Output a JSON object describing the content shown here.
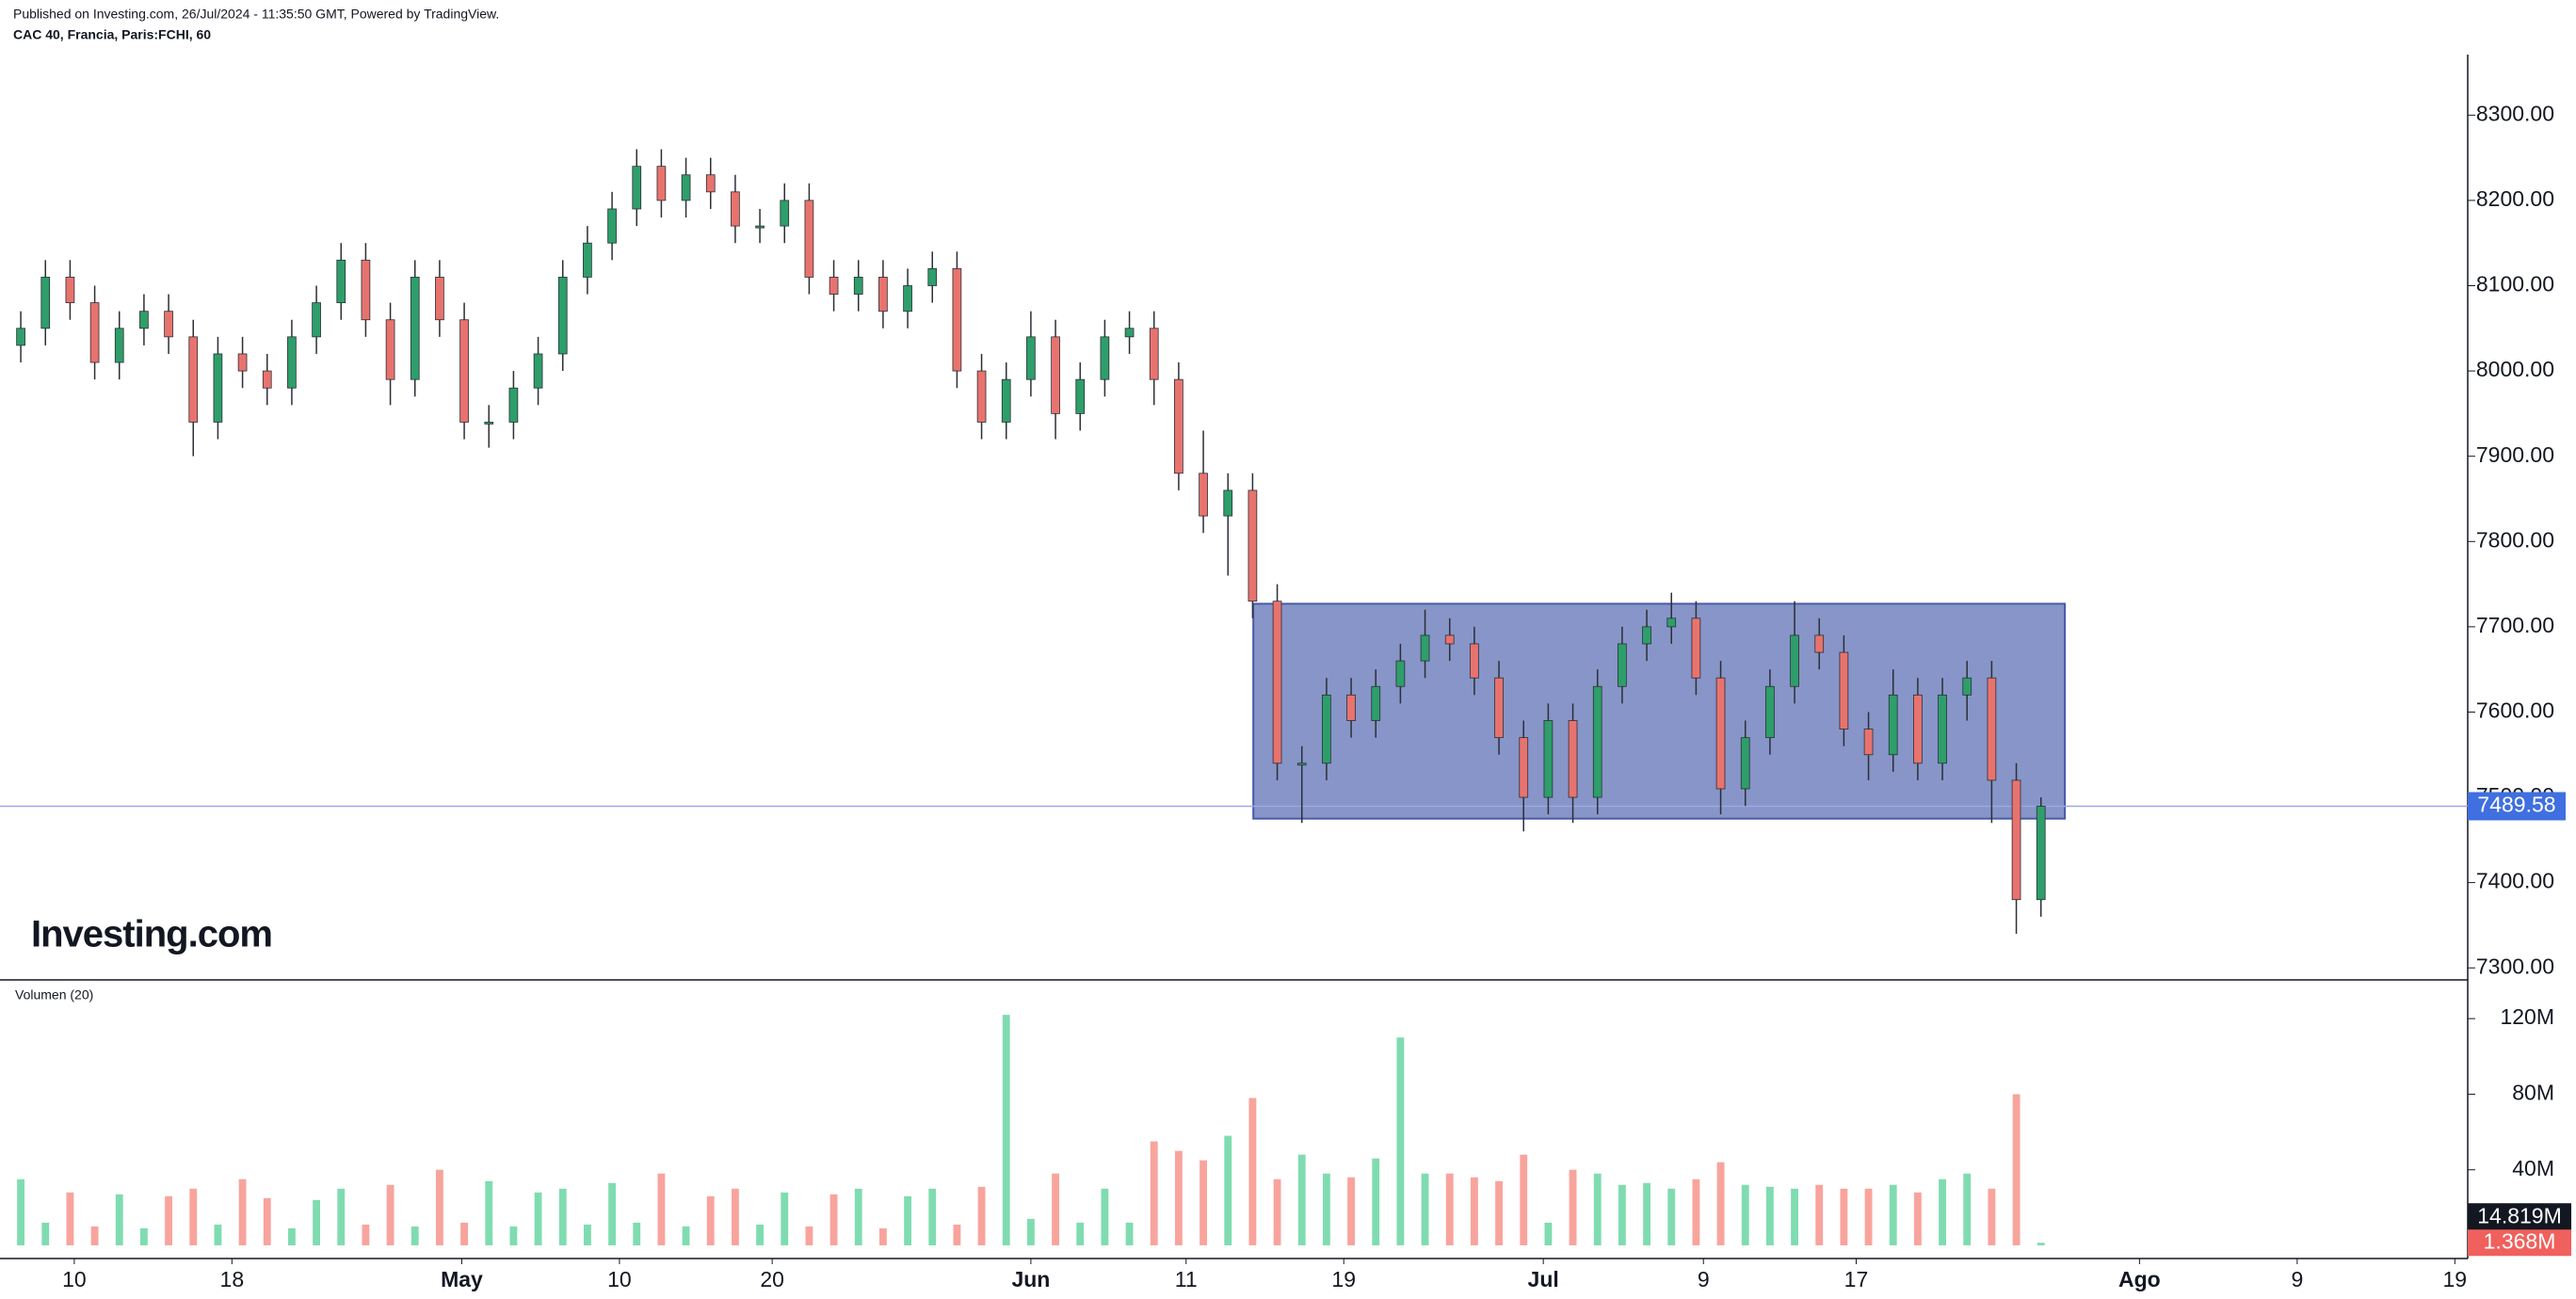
{
  "header": {
    "published": "Published on Investing.com, 26/Jul/2024 - 11:35:50 GMT, Powered by TradingView.",
    "symbol": "CAC 40, Francia, Paris:FCHI, 60"
  },
  "logo": "Investing.com",
  "chart_data": {
    "type": "candlestick",
    "up_color": "#2e9e6a",
    "down_color": "#e8736e",
    "open": [
      8030,
      8050,
      8110,
      8080,
      8010,
      8050,
      8070,
      8040,
      7940,
      8020,
      8000,
      7980,
      8040,
      8080,
      8130,
      8060,
      7990,
      8110,
      8060,
      7940,
      7940,
      7980,
      8020,
      8110,
      8150,
      8190,
      8240,
      8200,
      8230,
      8210,
      8170,
      8170,
      8200,
      8110,
      8090,
      8110,
      8070,
      8100,
      8120,
      8000,
      7940,
      7990,
      8040,
      7950,
      7990,
      8040,
      8050,
      7990,
      7880,
      7830,
      7860,
      7730,
      7540,
      7540,
      7620,
      7590,
      7630,
      7660,
      7690,
      7680,
      7640,
      7570,
      7500,
      7590,
      7500,
      7630,
      7680,
      7700,
      7710,
      7640,
      7510,
      7570,
      7630,
      7690,
      7670,
      7580,
      7550,
      7620,
      7540,
      7620,
      7640,
      7520,
      7380
    ],
    "high": [
      8070,
      8130,
      8130,
      8100,
      8070,
      8090,
      8090,
      8060,
      8040,
      8040,
      8020,
      8060,
      8100,
      8150,
      8150,
      8080,
      8130,
      8130,
      8080,
      7960,
      8000,
      8040,
      8130,
      8170,
      8210,
      8260,
      8260,
      8250,
      8250,
      8230,
      8190,
      8220,
      8220,
      8130,
      8130,
      8130,
      8120,
      8140,
      8140,
      8020,
      8010,
      8070,
      8060,
      8010,
      8060,
      8070,
      8070,
      8010,
      7930,
      7880,
      7880,
      7750,
      7560,
      7640,
      7640,
      7650,
      7680,
      7720,
      7710,
      7700,
      7660,
      7590,
      7610,
      7610,
      7650,
      7700,
      7720,
      7740,
      7730,
      7660,
      7590,
      7650,
      7730,
      7710,
      7690,
      7600,
      7650,
      7640,
      7640,
      7660,
      7660,
      7540,
      7500
    ],
    "low": [
      8010,
      8030,
      8060,
      7990,
      7990,
      8030,
      8020,
      7900,
      7920,
      7980,
      7960,
      7960,
      8020,
      8060,
      8040,
      7960,
      7970,
      8040,
      7920,
      7910,
      7920,
      7960,
      8000,
      8090,
      8130,
      8170,
      8180,
      8180,
      8190,
      8150,
      8150,
      8150,
      8090,
      8070,
      8070,
      8050,
      8050,
      8080,
      7980,
      7920,
      7920,
      7970,
      7920,
      7930,
      7970,
      8020,
      7960,
      7860,
      7810,
      7760,
      7710,
      7520,
      7470,
      7520,
      7570,
      7570,
      7610,
      7640,
      7660,
      7620,
      7550,
      7460,
      7480,
      7470,
      7480,
      7610,
      7660,
      7680,
      7620,
      7480,
      7490,
      7550,
      7610,
      7650,
      7560,
      7520,
      7530,
      7520,
      7520,
      7590,
      7470,
      7340,
      7360
    ],
    "close": [
      8050,
      8110,
      8080,
      8010,
      8050,
      8070,
      8040,
      7940,
      8020,
      8000,
      7980,
      8040,
      8080,
      8130,
      8060,
      7990,
      8110,
      8060,
      7940,
      7940,
      7980,
      8020,
      8110,
      8150,
      8190,
      8240,
      8200,
      8230,
      8210,
      8170,
      8170,
      8200,
      8110,
      8090,
      8110,
      8070,
      8100,
      8120,
      8000,
      7940,
      7990,
      8040,
      7950,
      7990,
      8040,
      8050,
      7990,
      7880,
      7830,
      7860,
      7730,
      7540,
      7540,
      7620,
      7590,
      7630,
      7660,
      7690,
      7680,
      7640,
      7570,
      7500,
      7590,
      7500,
      7630,
      7680,
      7700,
      7710,
      7640,
      7510,
      7570,
      7630,
      7690,
      7670,
      7580,
      7550,
      7620,
      7540,
      7620,
      7640,
      7520,
      7380,
      7489.58
    ],
    "ylim": [
      7287,
      8371
    ],
    "yticks": [
      {
        "value": 7300,
        "label": "7300.00"
      },
      {
        "value": 7400,
        "label": "7400.00"
      },
      {
        "value": 7500,
        "label": "7500.00"
      },
      {
        "value": 7600,
        "label": "7600.00"
      },
      {
        "value": 7700,
        "label": "7700.00"
      },
      {
        "value": 7800,
        "label": "7800.00"
      },
      {
        "value": 7900,
        "label": "7900.00"
      },
      {
        "value": 8000,
        "label": "8000.00"
      },
      {
        "value": 8100,
        "label": "8100.00"
      },
      {
        "value": 8200,
        "label": "8200.00"
      },
      {
        "value": 8300,
        "label": "8300.00"
      }
    ],
    "xlim": [
      0,
      99.67
    ],
    "xticks": [
      {
        "value": 2.67,
        "label": "10"
      },
      {
        "value": 9.07,
        "label": "18"
      },
      {
        "value": 18.4,
        "label": "May"
      },
      {
        "value": 24.8,
        "label": "10"
      },
      {
        "value": 31,
        "label": "20"
      },
      {
        "value": 41.5,
        "label": "Jun"
      },
      {
        "value": 47.8,
        "label": "11"
      },
      {
        "value": 54.2,
        "label": "19"
      },
      {
        "value": 62.3,
        "label": "Jul"
      },
      {
        "value": 68.8,
        "label": "9"
      },
      {
        "value": 75,
        "label": "17"
      },
      {
        "value": 86.5,
        "label": "Ago"
      },
      {
        "value": 92.9,
        "label": "9"
      },
      {
        "value": 99.3,
        "label": "19"
      }
    ],
    "rect": {
      "x": [
        50.53,
        83.47
      ],
      "y": [
        7475,
        7727
      ],
      "color": "#8795c8"
    },
    "volume": {
      "title": "Volumen (20)",
      "up_color": "#7fdcb0",
      "down_color": "#f8a49d",
      "values": [
        35000000,
        12000000,
        28000000,
        10000000,
        27000000,
        9000000,
        26000000,
        30000000,
        11000000,
        35000000,
        25000000,
        9000000,
        24000000,
        30000000,
        11000000,
        32000000,
        10000000,
        40000000,
        12000000,
        34000000,
        10000000,
        28000000,
        30000000,
        11000000,
        33000000,
        12000000,
        38000000,
        10000000,
        26000000,
        30000000,
        11000000,
        28000000,
        10000000,
        27000000,
        30000000,
        9000000,
        26000000,
        30000000,
        11000000,
        31000000,
        122000000,
        14000000,
        38000000,
        12000000,
        30000000,
        12000000,
        55000000,
        50000000,
        45000000,
        58000000,
        78000000,
        35000000,
        48000000,
        38000000,
        36000000,
        46000000,
        110000000,
        38000000,
        38000000,
        36000000,
        34000000,
        48000000,
        12000000,
        40000000,
        38000000,
        32000000,
        33000000,
        30000000,
        35000000,
        44000000,
        32000000,
        31000000,
        30000000,
        32000000,
        30000000,
        30000000,
        32000000,
        28000000,
        35000000,
        38000000,
        30000000,
        80000000,
        1368000
      ],
      "last_label": "1.368M",
      "ma": {
        "value": 14819000,
        "label": "14.819M"
      },
      "ylim": [
        0,
        140000000
      ],
      "yticks": [
        {
          "value": 40000000,
          "label": "40M"
        },
        {
          "value": 80000000,
          "label": "80M"
        },
        {
          "value": 120000000,
          "label": "120M"
        }
      ]
    }
  }
}
